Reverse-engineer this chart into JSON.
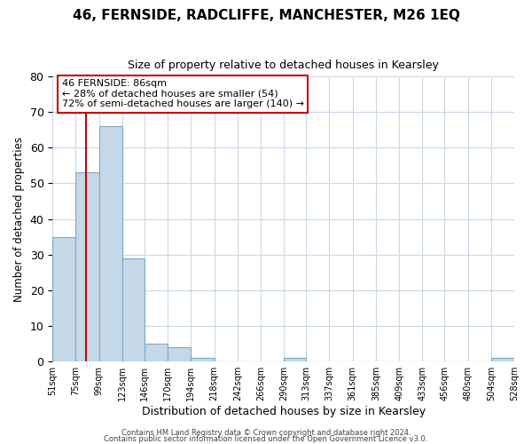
{
  "title": "46, FERNSIDE, RADCLIFFE, MANCHESTER, M26 1EQ",
  "subtitle": "Size of property relative to detached houses in Kearsley",
  "xlabel": "Distribution of detached houses by size in Kearsley",
  "ylabel": "Number of detached properties",
  "bin_edges": [
    51,
    75,
    99,
    123,
    146,
    170,
    194,
    218,
    242,
    266,
    290,
    313,
    337,
    361,
    385,
    409,
    433,
    456,
    480,
    504,
    528
  ],
  "bar_heights": [
    35,
    53,
    66,
    29,
    5,
    4,
    1,
    0,
    0,
    0,
    1,
    0,
    0,
    0,
    0,
    0,
    0,
    0,
    0,
    1
  ],
  "bar_color": "#c5d8e8",
  "bar_edge_color": "#7baac8",
  "vline_x": 86,
  "vline_color": "#cc0000",
  "ylim": [
    0,
    80
  ],
  "yticks": [
    0,
    10,
    20,
    30,
    40,
    50,
    60,
    70,
    80
  ],
  "annotation_text": "46 FERNSIDE: 86sqm\n← 28% of detached houses are smaller (54)\n72% of semi-detached houses are larger (140) →",
  "annotation_box_edge": "#cc0000",
  "footer_line1": "Contains HM Land Registry data © Crown copyright and database right 2024.",
  "footer_line2": "Contains public sector information licensed under the Open Government Licence v3.0.",
  "background_color": "#ffffff",
  "grid_color": "#c8d8e8",
  "figsize": [
    6.0,
    5.0
  ],
  "dpi": 100
}
